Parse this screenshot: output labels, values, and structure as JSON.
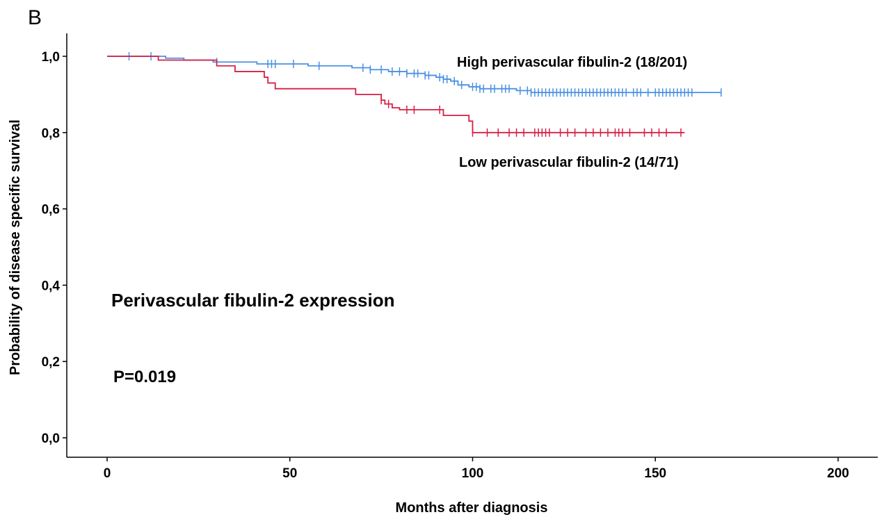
{
  "panel_label": "B",
  "colors": {
    "high": "#4a90e2",
    "low": "#d61f45",
    "axis": "#000000"
  },
  "chart_data": {
    "type": "line",
    "subtype": "kaplan-meier",
    "title": "",
    "xlabel": "Months after diagnosis",
    "ylabel": "Probability of disease specific survival",
    "xlim": [
      0,
      210
    ],
    "ylim": [
      0,
      1.05
    ],
    "xticks": [
      0,
      50,
      100,
      150,
      200
    ],
    "xtick_labels": [
      "0",
      "50",
      "100",
      "150",
      "200"
    ],
    "yticks": [
      0,
      0.2,
      0.4,
      0.6,
      0.8,
      1.0
    ],
    "ytick_labels": [
      "0,0",
      "0,2",
      "0,4",
      "0,6",
      "0,8",
      "1,0"
    ],
    "grid": false,
    "series": [
      {
        "key": "high",
        "name": "High perivascular fibulin-2 (18/201)",
        "step_x": [
          0,
          16,
          21,
          29,
          41,
          55,
          67,
          72,
          77,
          82,
          87,
          90,
          92,
          94,
          96,
          99,
          102,
          112,
          116,
          168
        ],
        "step_y": [
          1.0,
          0.995,
          0.99,
          0.985,
          0.98,
          0.975,
          0.97,
          0.965,
          0.96,
          0.955,
          0.95,
          0.945,
          0.94,
          0.935,
          0.925,
          0.92,
          0.915,
          0.91,
          0.905,
          0.905
        ],
        "censor_x": [
          6,
          12,
          30,
          44,
          45,
          46,
          51,
          58,
          70,
          72,
          75,
          78,
          80,
          82,
          84,
          85,
          87,
          88,
          91,
          92,
          93,
          95,
          97,
          100,
          101,
          102,
          103,
          105,
          106,
          108,
          109,
          110,
          113,
          115,
          116,
          117,
          118,
          119,
          120,
          121,
          122,
          123,
          124,
          125,
          126,
          127,
          128,
          129,
          130,
          131,
          132,
          133,
          134,
          135,
          136,
          137,
          138,
          139,
          140,
          141,
          142,
          144,
          145,
          146,
          148,
          150,
          151,
          152,
          153,
          154,
          155,
          156,
          157,
          158,
          159,
          160,
          168
        ]
      },
      {
        "key": "low",
        "name": "Low perivascular fibulin-2 (14/71)",
        "step_x": [
          0,
          14,
          30,
          35,
          43,
          44,
          46,
          68,
          75,
          76,
          78,
          80,
          92,
          99,
          100,
          158
        ],
        "step_y": [
          1.0,
          0.99,
          0.975,
          0.96,
          0.945,
          0.93,
          0.915,
          0.9,
          0.885,
          0.875,
          0.865,
          0.86,
          0.845,
          0.83,
          0.8,
          0.8
        ],
        "censor_x": [
          75,
          77,
          82,
          84,
          91,
          100,
          104,
          107,
          110,
          112,
          114,
          117,
          118,
          119,
          120,
          121,
          124,
          126,
          128,
          131,
          133,
          135,
          137,
          139,
          140,
          141,
          143,
          147,
          149,
          151,
          153,
          157
        ]
      }
    ],
    "annotations": [
      "Perivascular fibulin-2 expression",
      "P=0.019"
    ]
  }
}
